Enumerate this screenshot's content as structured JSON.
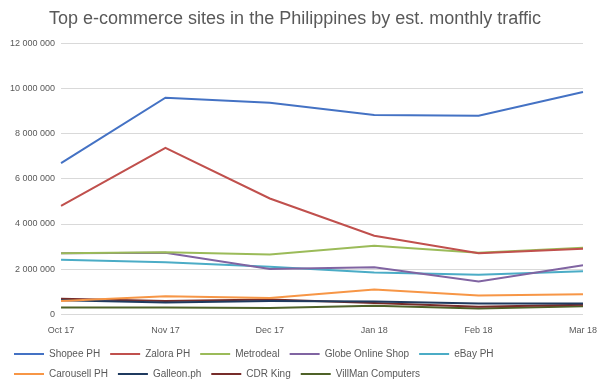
{
  "chart_data": {
    "type": "line",
    "title": "Top e-commerce sites in the Philippines by est. monthly traffic",
    "categories": [
      "Oct 17",
      "Nov 17",
      "Dec 17",
      "Jan 18",
      "Feb 18",
      "Mar 18"
    ],
    "series": [
      {
        "name": "Shopee PH",
        "color": "#4472c4",
        "values": [
          6700000,
          9600000,
          9380000,
          8830000,
          8800000,
          9850000
        ]
      },
      {
        "name": "Zalora PH",
        "color": "#c0504d",
        "values": [
          4800000,
          7380000,
          5130000,
          3480000,
          2700000,
          2900000
        ]
      },
      {
        "name": "Metrodeal",
        "color": "#9bbb59",
        "values": [
          2700000,
          2750000,
          2650000,
          3030000,
          2730000,
          2950000
        ]
      },
      {
        "name": "Globe Online Shop",
        "color": "#8064a2",
        "values": [
          2700000,
          2730000,
          2000000,
          2080000,
          1450000,
          2170000
        ]
      },
      {
        "name": "eBay PH",
        "color": "#4bacc6",
        "values": [
          2420000,
          2300000,
          2100000,
          1850000,
          1750000,
          1900000
        ]
      },
      {
        "name": "Carousell PH",
        "color": "#f79646",
        "values": [
          580000,
          800000,
          720000,
          1100000,
          830000,
          880000
        ]
      },
      {
        "name": "Galleon.ph",
        "color": "#1f3a5f",
        "values": [
          620000,
          520000,
          580000,
          560000,
          470000,
          480000
        ]
      },
      {
        "name": "CDR King",
        "color": "#772c2a",
        "values": [
          680000,
          580000,
          650000,
          500000,
          330000,
          420000
        ]
      },
      {
        "name": "VillMan Computers",
        "color": "#4f6228",
        "values": [
          300000,
          300000,
          280000,
          380000,
          250000,
          350000
        ]
      }
    ],
    "ylim": [
      0,
      12000000
    ],
    "yticks": [
      0,
      {
        "value": 2000000,
        "label": "2 000 000"
      },
      {
        "value": 4000000,
        "label": "4 000 000"
      },
      {
        "value": 6000000,
        "label": "6 000 000"
      },
      {
        "value": 8000000,
        "label": "8 000 000"
      },
      {
        "value": 10000000,
        "label": "10 000 000"
      },
      {
        "value": 12000000,
        "label": "12 000 000"
      }
    ],
    "grid": true,
    "legend": "bottom",
    "marker": "none"
  }
}
